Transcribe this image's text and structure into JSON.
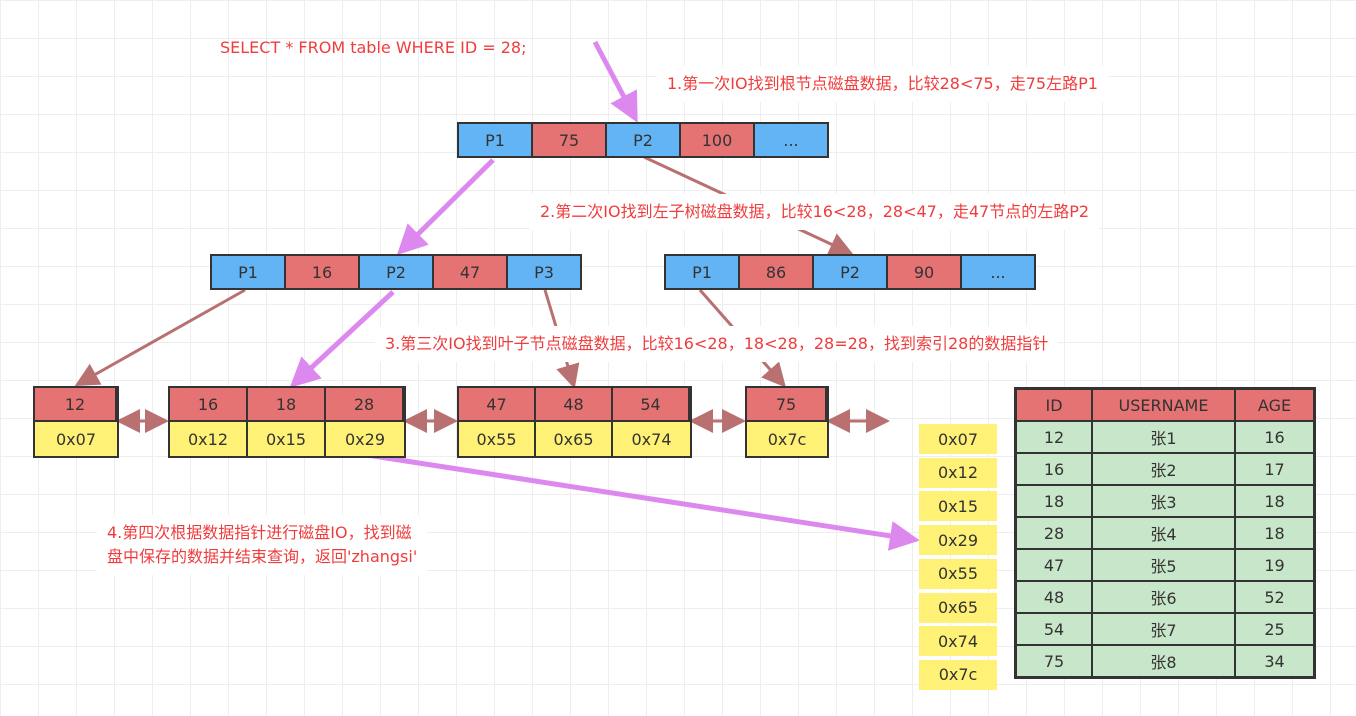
{
  "query": "SELECT * FROM table WHERE ID = 28;",
  "steps": [
    "1.第一次IO找到根节点磁盘数据，比较28<75，走75左路P1",
    "2.第二次IO找到左子树磁盘数据，比较16<28，28<47，走47节点的左路P2",
    "3.第三次IO找到叶子节点磁盘数据，比较16<28，18<28，28=28，找到索引28的数据指针",
    "4.第四次根据数据指针进行磁盘IO，找到磁",
    "盘中保存的数据并结束查询，返回'zhangsi'"
  ],
  "root": [
    "P1",
    "75",
    "P2",
    "100",
    "..."
  ],
  "level2_left": [
    "P1",
    "16",
    "P2",
    "47",
    "P3"
  ],
  "level2_right": [
    "P1",
    "86",
    "P2",
    "90",
    "..."
  ],
  "leaves": [
    {
      "keys": [
        "12"
      ],
      "ptrs": [
        "0x07"
      ]
    },
    {
      "keys": [
        "16",
        "18",
        "28"
      ],
      "ptrs": [
        "0x12",
        "0x15",
        "0x29"
      ]
    },
    {
      "keys": [
        "47",
        "48",
        "54"
      ],
      "ptrs": [
        "0x55",
        "0x65",
        "0x74"
      ]
    },
    {
      "keys": [
        "75"
      ],
      "ptrs": [
        "0x7c"
      ]
    }
  ],
  "pointers": [
    "0x07",
    "0x12",
    "0x15",
    "0x29",
    "0x55",
    "0x65",
    "0x74",
    "0x7c"
  ],
  "table": {
    "headers": [
      "ID",
      "USERNAME",
      "AGE"
    ],
    "rows": [
      [
        "12",
        "张1",
        "16"
      ],
      [
        "16",
        "张2",
        "17"
      ],
      [
        "18",
        "张3",
        "18"
      ],
      [
        "28",
        "张4",
        "18"
      ],
      [
        "47",
        "张5",
        "19"
      ],
      [
        "48",
        "张6",
        "52"
      ],
      [
        "54",
        "张7",
        "25"
      ],
      [
        "75",
        "张8",
        "34"
      ]
    ]
  },
  "colors": {
    "pointer": "#62b4f5",
    "key": "#e57373",
    "address": "#fff176",
    "row": "#c8e6c9",
    "search_path": "#dd88ee",
    "link": "#b87070",
    "text": "#f03c3c"
  }
}
